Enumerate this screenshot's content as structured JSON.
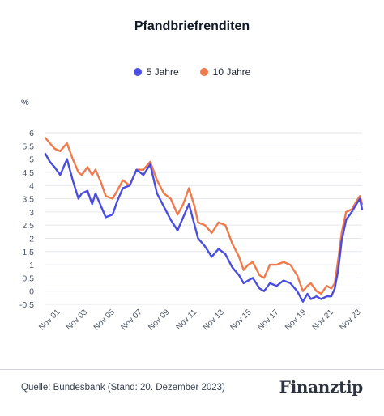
{
  "chart_data": {
    "type": "line",
    "title": "Pfandbriefrenditen",
    "ylabel": "%",
    "ylim": [
      -0.5,
      6
    ],
    "yticks": [
      -0.5,
      0,
      0.5,
      1,
      1.5,
      2,
      2.5,
      3,
      3.5,
      4,
      4.5,
      5,
      5.5,
      6
    ],
    "ytick_labels": [
      "-0,5",
      "0",
      "0,5",
      "1",
      "1,5",
      "2",
      "2,5",
      "3",
      "3,5",
      "4",
      "4,5",
      "5",
      "5,5",
      "6"
    ],
    "xlim": [
      "2000-10",
      "2023-12"
    ],
    "xticks": [
      "2001-11",
      "2003-11",
      "2005-11",
      "2007-11",
      "2009-11",
      "2011-11",
      "2013-11",
      "2015-11",
      "2017-11",
      "2019-11",
      "2021-11",
      "2023-11"
    ],
    "xtick_labels": [
      "Nov 01",
      "Nov 03",
      "Nov 05",
      "Nov 07",
      "Nov 09",
      "Nov 11",
      "Nov 13",
      "Nov 15",
      "Nov 17",
      "Nov 19",
      "Nov 21",
      "Nov 23"
    ],
    "grid": "horizontal",
    "legend_position": "top",
    "series": [
      {
        "name": "5 Jahre",
        "color": "#4a4de0",
        "x": [
          "2000-10",
          "2001-02",
          "2001-06",
          "2001-11",
          "2002-05",
          "2002-10",
          "2003-03",
          "2003-06",
          "2003-11",
          "2004-03",
          "2004-06",
          "2004-11",
          "2005-03",
          "2005-09",
          "2006-01",
          "2006-06",
          "2006-12",
          "2007-06",
          "2007-12",
          "2008-06",
          "2008-12",
          "2009-06",
          "2009-12",
          "2010-06",
          "2010-11",
          "2011-04",
          "2011-09",
          "2011-12",
          "2012-06",
          "2012-12",
          "2013-06",
          "2013-12",
          "2014-06",
          "2014-12",
          "2015-04",
          "2015-08",
          "2015-12",
          "2016-06",
          "2016-10",
          "2017-03",
          "2017-09",
          "2018-03",
          "2018-09",
          "2019-03",
          "2019-08",
          "2019-12",
          "2020-03",
          "2020-08",
          "2020-12",
          "2021-05",
          "2021-09",
          "2021-12",
          "2022-03",
          "2022-06",
          "2022-10",
          "2023-03",
          "2023-07",
          "2023-10",
          "2023-12"
        ],
        "values": [
          5.2,
          4.9,
          4.7,
          4.4,
          5.0,
          4.2,
          3.5,
          3.7,
          3.8,
          3.3,
          3.7,
          3.2,
          2.8,
          2.9,
          3.4,
          3.9,
          4.0,
          4.6,
          4.4,
          4.8,
          3.7,
          3.2,
          2.7,
          2.3,
          2.8,
          3.3,
          2.5,
          2.0,
          1.7,
          1.3,
          1.6,
          1.4,
          0.9,
          0.6,
          0.3,
          0.4,
          0.5,
          0.1,
          0.0,
          0.3,
          0.2,
          0.4,
          0.3,
          0.0,
          -0.4,
          -0.1,
          -0.3,
          -0.2,
          -0.3,
          -0.2,
          -0.2,
          0.1,
          0.8,
          1.9,
          2.7,
          3.0,
          3.3,
          3.5,
          3.1
        ]
      },
      {
        "name": "10 Jahre",
        "color": "#f07a4c",
        "x": [
          "2000-10",
          "2001-02",
          "2001-06",
          "2001-11",
          "2002-05",
          "2002-10",
          "2003-03",
          "2003-06",
          "2003-11",
          "2004-03",
          "2004-06",
          "2004-11",
          "2005-03",
          "2005-09",
          "2006-01",
          "2006-06",
          "2006-12",
          "2007-06",
          "2007-12",
          "2008-06",
          "2008-12",
          "2009-06",
          "2009-12",
          "2010-06",
          "2010-11",
          "2011-04",
          "2011-09",
          "2011-12",
          "2012-06",
          "2012-12",
          "2013-06",
          "2013-12",
          "2014-06",
          "2014-12",
          "2015-04",
          "2015-08",
          "2015-12",
          "2016-06",
          "2016-10",
          "2017-03",
          "2017-09",
          "2018-03",
          "2018-09",
          "2019-03",
          "2019-08",
          "2019-12",
          "2020-03",
          "2020-08",
          "2020-12",
          "2021-05",
          "2021-09",
          "2021-12",
          "2022-03",
          "2022-06",
          "2022-10",
          "2023-03",
          "2023-07",
          "2023-10",
          "2023-12"
        ],
        "values": [
          5.8,
          5.6,
          5.4,
          5.3,
          5.6,
          5.0,
          4.5,
          4.4,
          4.7,
          4.4,
          4.6,
          4.1,
          3.6,
          3.5,
          3.8,
          4.2,
          4.0,
          4.6,
          4.6,
          4.9,
          4.2,
          3.7,
          3.5,
          2.9,
          3.3,
          3.9,
          3.2,
          2.6,
          2.5,
          2.2,
          2.6,
          2.5,
          1.8,
          1.3,
          0.8,
          1.0,
          1.1,
          0.6,
          0.5,
          1.0,
          1.0,
          1.1,
          1.0,
          0.6,
          0.0,
          0.2,
          0.3,
          0.0,
          -0.1,
          0.2,
          0.1,
          0.3,
          1.2,
          2.2,
          3.0,
          3.1,
          3.4,
          3.6,
          3.3
        ]
      }
    ]
  },
  "source": "Quelle: Bundesbank (Stand: 20. Dezember 2023)",
  "logo": "Finanztip"
}
